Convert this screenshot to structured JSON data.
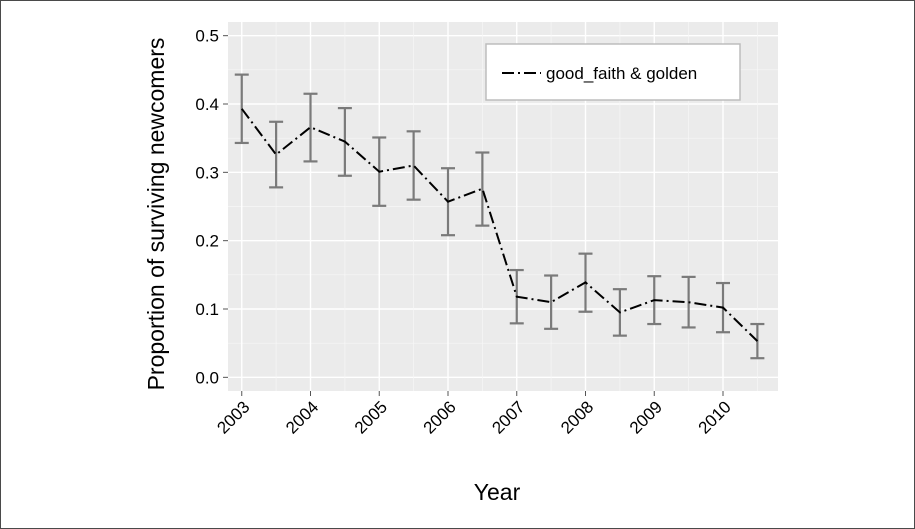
{
  "chart_data": {
    "type": "line",
    "xlabel": "Year",
    "ylabel": "Proportion of surviving newcomers",
    "x_tick_labels": [
      "2003",
      "2004",
      "2005",
      "2006",
      "2007",
      "2008",
      "2009",
      "2010"
    ],
    "y_tick_labels": [
      "0.0",
      "0.1",
      "0.2",
      "0.3",
      "0.4",
      "0.5"
    ],
    "xlim": [
      2002.8,
      2010.8
    ],
    "ylim": [
      -0.02,
      0.52
    ],
    "grid": true,
    "legend_position": "top-right",
    "series": [
      {
        "name": "good_faith & golden",
        "color": "#000000",
        "line_style": "dash-dot",
        "error_bar_color": "#7a7a7a",
        "x": [
          2003.0,
          2003.5,
          2004.0,
          2004.5,
          2005.0,
          2005.5,
          2006.0,
          2006.5,
          2007.0,
          2007.5,
          2008.0,
          2008.5,
          2009.0,
          2009.5,
          2010.0,
          2010.5
        ],
        "y": [
          0.393,
          0.326,
          0.366,
          0.345,
          0.301,
          0.31,
          0.257,
          0.276,
          0.118,
          0.11,
          0.139,
          0.095,
          0.113,
          0.11,
          0.102,
          0.053
        ],
        "y_low": [
          0.343,
          0.278,
          0.316,
          0.295,
          0.251,
          0.26,
          0.208,
          0.222,
          0.079,
          0.071,
          0.096,
          0.061,
          0.078,
          0.073,
          0.066,
          0.028
        ],
        "y_high": [
          0.443,
          0.374,
          0.415,
          0.394,
          0.351,
          0.36,
          0.306,
          0.329,
          0.157,
          0.149,
          0.181,
          0.129,
          0.148,
          0.147,
          0.138,
          0.078
        ]
      }
    ]
  }
}
